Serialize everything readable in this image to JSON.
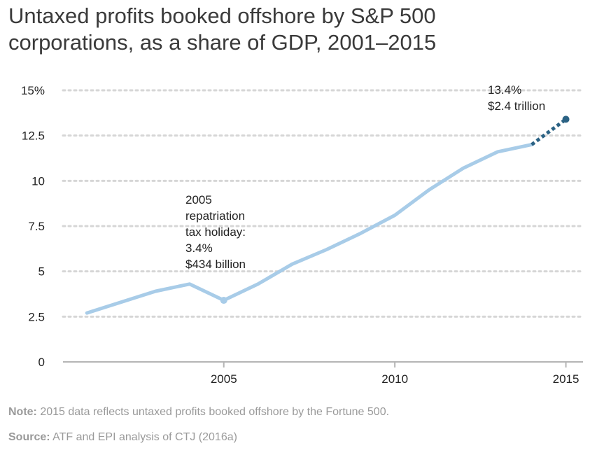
{
  "chart_data": {
    "type": "line",
    "title_lines": [
      "Untaxed profits booked offshore by S&P 500",
      "corporations, as a share of GDP, 2001–2015"
    ],
    "xlabel": "",
    "ylabel": "",
    "xlim": [
      2000.3,
      2015.5
    ],
    "ylim": [
      0,
      15
    ],
    "x_ticks": [
      2005,
      2010,
      2015
    ],
    "x_tick_labels": [
      "2005",
      "2010",
      "2015"
    ],
    "y_ticks": [
      0,
      2.5,
      5,
      7.5,
      10,
      12.5,
      15
    ],
    "y_tick_labels": [
      "0",
      "2.5",
      "5",
      "7.5",
      "10",
      "12.5",
      "15%"
    ],
    "grid": "horizontal-dotted",
    "series": [
      {
        "style": "solid",
        "color": "#a8cce8",
        "x": [
          2001,
          2002,
          2003,
          2004,
          2005,
          2006,
          2007,
          2008,
          2009,
          2010,
          2011,
          2012,
          2013,
          2014
        ],
        "y": [
          2.7,
          3.3,
          3.9,
          4.3,
          3.4,
          4.3,
          5.4,
          6.2,
          7.1,
          8.1,
          9.5,
          10.7,
          11.6,
          12.0
        ]
      },
      {
        "style": "dotted",
        "color": "#2b6284",
        "x": [
          2014,
          2015
        ],
        "y": [
          12.0,
          13.4
        ]
      }
    ],
    "markers": [
      {
        "x": 2005,
        "y": 3.4,
        "color": "#a8cce8"
      },
      {
        "x": 2015,
        "y": 13.4,
        "color": "#2b6284"
      }
    ],
    "annotations": [
      {
        "lines": [
          "2005",
          "repatriation",
          "tax holiday:",
          "3.4%",
          "$434 billion"
        ]
      },
      {
        "lines": [
          "13.4%",
          "$2.4 trillion"
        ]
      }
    ]
  },
  "footer": {
    "note_label": "Note:",
    "note_text": " 2015 data reflects untaxed profits booked offshore by the Fortune 500.",
    "source_label": "Source:",
    "source_text": " ATF and EPI analysis of CTJ (2016a)"
  }
}
